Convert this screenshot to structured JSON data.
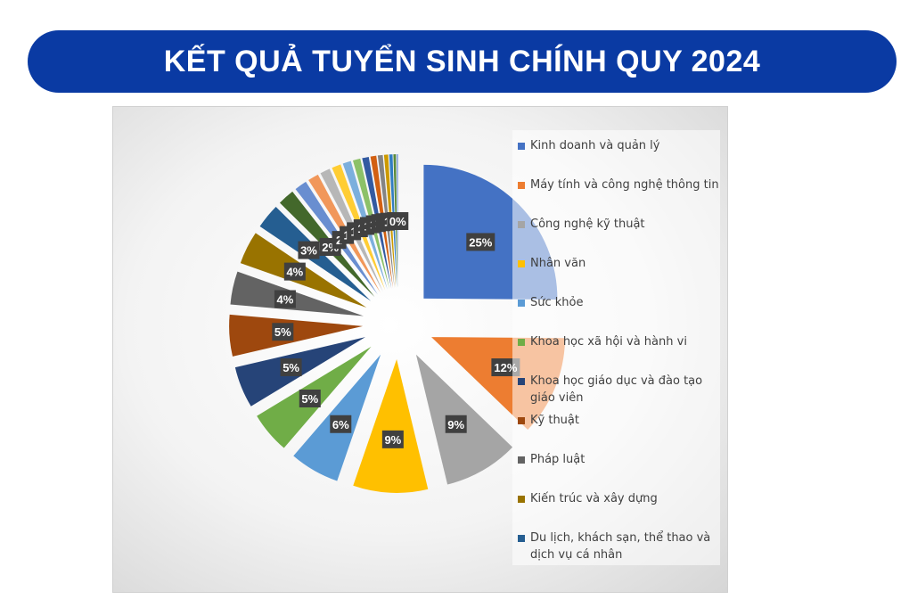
{
  "title": "KẾT QUẢ TUYỂN SINH CHÍNH QUY 2024",
  "chart_data": {
    "type": "pie",
    "variant": "exploded",
    "legend_position": "right",
    "slices": [
      {
        "name": "Kinh doanh và quản lý",
        "value": 25,
        "label": "25%",
        "color": "#4472c4"
      },
      {
        "name": "Máy tính và công nghệ thông tin",
        "value": 12,
        "label": "12%",
        "color": "#ed7d31"
      },
      {
        "name": "Công nghệ kỹ thuật",
        "value": 9,
        "label": "9%",
        "color": "#a5a5a5"
      },
      {
        "name": "Nhân văn",
        "value": 9,
        "label": "9%",
        "color": "#ffc000"
      },
      {
        "name": "Sức khỏe",
        "value": 6,
        "label": "6%",
        "color": "#5b9bd5"
      },
      {
        "name": "Khoa học xã hội và hành vi",
        "value": 5,
        "label": "5%",
        "color": "#70ad47"
      },
      {
        "name": "Khoa học giáo dục và đào tạo giáo viên",
        "value": 5,
        "label": "5%",
        "color": "#264478"
      },
      {
        "name": "Kỹ thuật",
        "value": 5,
        "label": "5%",
        "color": "#9e480e"
      },
      {
        "name": "Pháp luật",
        "value": 4,
        "label": "4%",
        "color": "#636363"
      },
      {
        "name": "Kiến trúc và xây dựng",
        "value": 4,
        "label": "4%",
        "color": "#997300"
      },
      {
        "name": "Du lịch, khách sạn, thể thao và dịch vụ cá nhân",
        "value": 3,
        "label": "3%",
        "color": "#255e91"
      },
      {
        "name": "",
        "value": 2,
        "label": "2%",
        "color": "#43682b"
      },
      {
        "name": "",
        "value": 1.5,
        "label": "2",
        "color": "#698ed0"
      },
      {
        "name": "",
        "value": 1.3,
        "label": "1",
        "color": "#f1975a"
      },
      {
        "name": "",
        "value": 1.2,
        "label": "1",
        "color": "#b7b7b7"
      },
      {
        "name": "",
        "value": 1.1,
        "label": "1",
        "color": "#ffcd33"
      },
      {
        "name": "",
        "value": 1.0,
        "label": "1",
        "color": "#7cafdd"
      },
      {
        "name": "",
        "value": 0.9,
        "label": "1",
        "color": "#8cc168"
      },
      {
        "name": "",
        "value": 0.8,
        "label": "1",
        "color": "#335aa1"
      },
      {
        "name": "",
        "value": 0.7,
        "label": "1",
        "color": "#d26012"
      },
      {
        "name": "",
        "value": 0.6,
        "label": "1",
        "color": "#848484"
      },
      {
        "name": "",
        "value": 0.5,
        "label": "",
        "color": "#cc9a00"
      },
      {
        "name": "",
        "value": 0.4,
        "label": "",
        "color": "#327dc2"
      },
      {
        "name": "",
        "value": 0.3,
        "label": "",
        "color": "#5a8a39"
      },
      {
        "name": "",
        "value": 0.2,
        "label": "0%",
        "color": "#8faadc"
      }
    ]
  }
}
